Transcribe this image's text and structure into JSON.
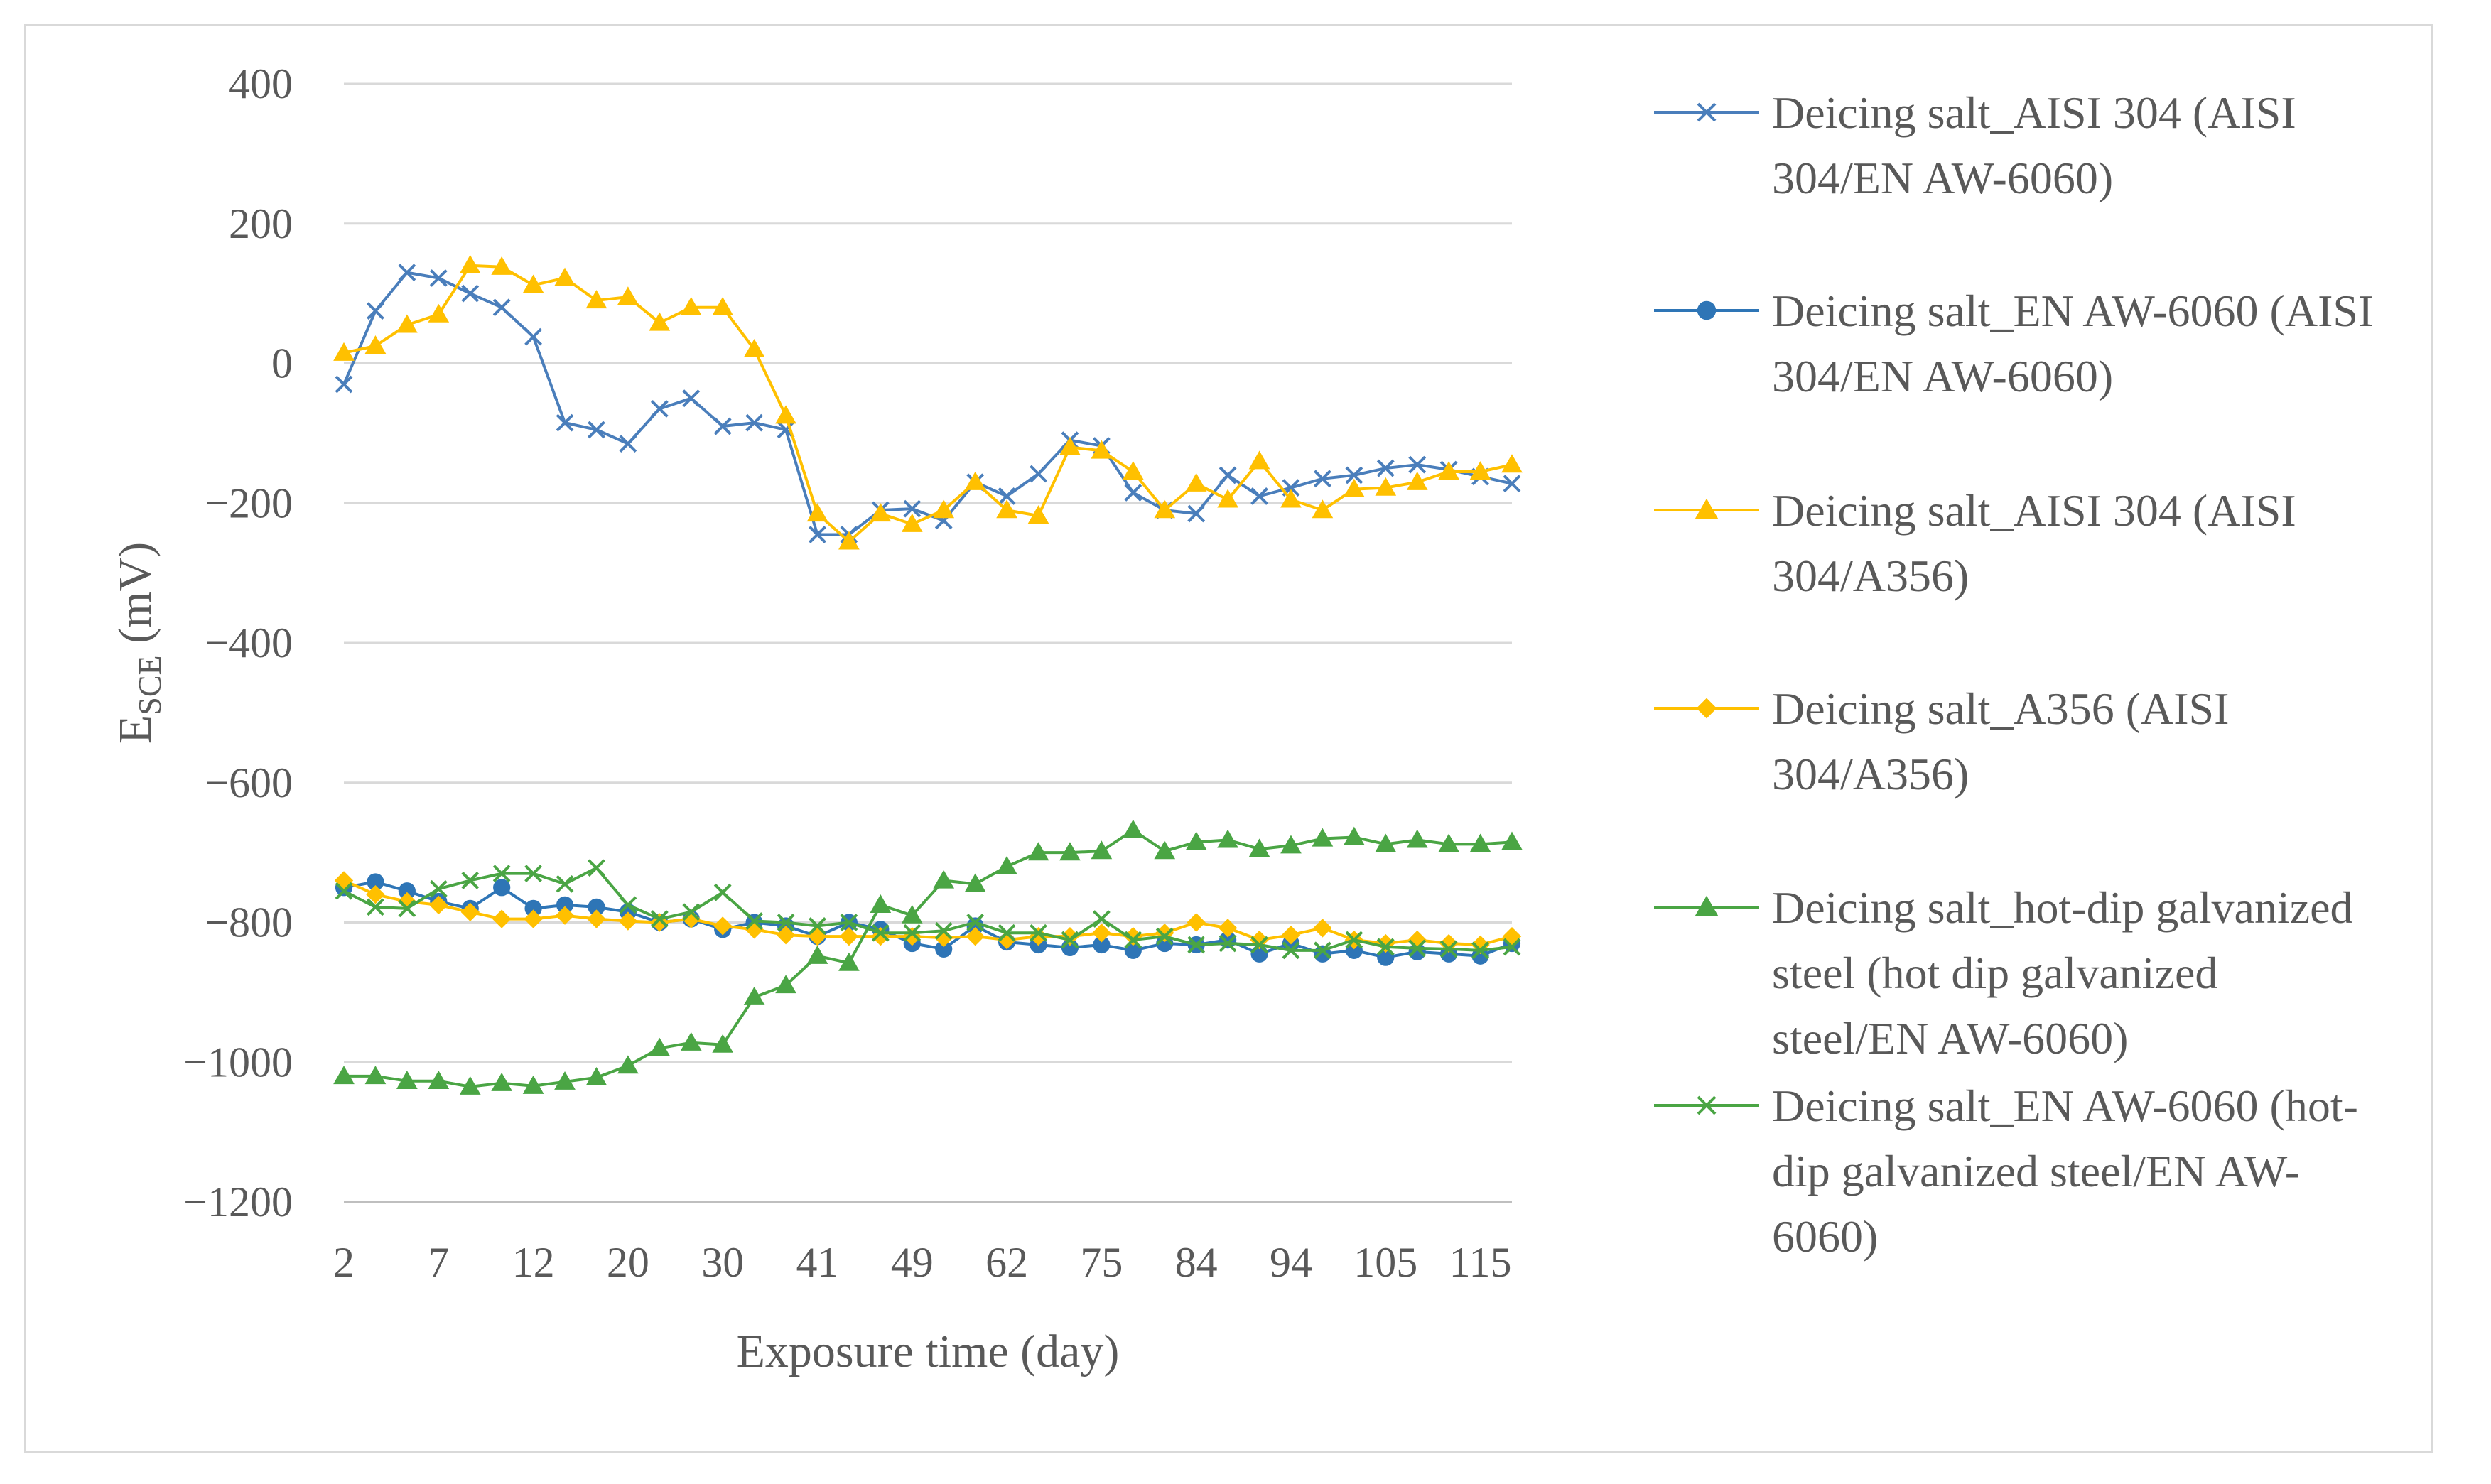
{
  "chart_data": {
    "type": "line",
    "title": "",
    "xlabel": "Exposure time (day)",
    "ylabel": {
      "main": "E",
      "subscript": "SCE",
      "suffix": " (mV)"
    },
    "ylim": [
      -1200,
      400
    ],
    "yticks": [
      400,
      200,
      0,
      -200,
      -400,
      -600,
      -800,
      -1000,
      -1200
    ],
    "ytick_labels": [
      "400",
      "200",
      "0",
      "−200",
      "−400",
      "−600",
      "−800",
      "−1000",
      "−1200"
    ],
    "xtick_labels": [
      "2",
      "7",
      "12",
      "20",
      "30",
      "41",
      "49",
      "62",
      "75",
      "84",
      "94",
      "105",
      "115"
    ],
    "grid": "horizontal",
    "legend_position": "right",
    "n_points": 38,
    "series": [
      {
        "name": "Deicing salt_AISI 304 (AISI 304/EN AW-6060)",
        "color": "#4a7ebb",
        "marker": "x",
        "values": [
          -30,
          75,
          130,
          122,
          100,
          80,
          38,
          -85,
          -95,
          -115,
          -65,
          -50,
          -90,
          -85,
          -95,
          -245,
          -245,
          -210,
          -208,
          -225,
          -170,
          -190,
          -158,
          -110,
          -118,
          -185,
          -210,
          -215,
          -160,
          -190,
          -178,
          -165,
          -160,
          -150,
          -145,
          -152,
          -162,
          -172
        ]
      },
      {
        "name": "Deicing salt_EN AW-6060 (AISI 304/EN AW-6060)",
        "color": "#2e75b6",
        "marker": "circle",
        "values": [
          -750,
          -742,
          -755,
          -770,
          -780,
          -750,
          -780,
          -775,
          -778,
          -785,
          -800,
          -795,
          -810,
          -800,
          -805,
          -820,
          -800,
          -810,
          -830,
          -838,
          -805,
          -828,
          -832,
          -836,
          -832,
          -840,
          -830,
          -832,
          -825,
          -845,
          -830,
          -845,
          -840,
          -850,
          -842,
          -845,
          -848,
          -830
        ]
      },
      {
        "name": "Deicing salt_AISI 304 (AISI 304/A356)",
        "color": "#ffc000",
        "marker": "triangle",
        "values": [
          15,
          25,
          55,
          70,
          140,
          138,
          112,
          122,
          90,
          95,
          58,
          80,
          80,
          20,
          -75,
          -215,
          -255,
          -215,
          -230,
          -210,
          -170,
          -210,
          -218,
          -120,
          -125,
          -155,
          -210,
          -172,
          -195,
          -140,
          -195,
          -210,
          -180,
          -178,
          -170,
          -155,
          -155,
          -145
        ]
      },
      {
        "name": "Deicing salt_A356 (AISI 304/A356)",
        "color": "#ffc000",
        "marker": "diamond",
        "values": [
          -740,
          -760,
          -770,
          -775,
          -785,
          -795,
          -795,
          -790,
          -795,
          -798,
          -800,
          -795,
          -805,
          -810,
          -818,
          -820,
          -820,
          -820,
          -820,
          -822,
          -820,
          -825,
          -820,
          -820,
          -815,
          -820,
          -815,
          -800,
          -808,
          -825,
          -818,
          -808,
          -825,
          -830,
          -825,
          -830,
          -832,
          -820
        ]
      },
      {
        "name": "Deicing salt_hot-dip galvanized steel (hot dip galvanized steel/EN AW-6060)",
        "color": "#4aa544",
        "marker": "triangle",
        "values": [
          -1020,
          -1020,
          -1027,
          -1027,
          -1035,
          -1030,
          -1034,
          -1028,
          -1022,
          -1005,
          -980,
          -972,
          -975,
          -907,
          -890,
          -848,
          -858,
          -775,
          -790,
          -740,
          -745,
          -720,
          -700,
          -700,
          -698,
          -668,
          -698,
          -685,
          -682,
          -695,
          -690,
          -680,
          -678,
          -688,
          -682,
          -688,
          -688,
          -685
        ]
      },
      {
        "name": "Deicing salt_EN AW-6060 (hot-dip galvanized steel/EN AW-6060)",
        "color": "#4aa544",
        "marker": "x",
        "values": [
          -755,
          -778,
          -780,
          -752,
          -740,
          -730,
          -730,
          -745,
          -722,
          -775,
          -795,
          -785,
          -757,
          -798,
          -800,
          -805,
          -800,
          -815,
          -815,
          -812,
          -800,
          -815,
          -815,
          -825,
          -795,
          -825,
          -820,
          -832,
          -830,
          -832,
          -840,
          -840,
          -825,
          -835,
          -837,
          -838,
          -840,
          -835
        ]
      }
    ]
  }
}
